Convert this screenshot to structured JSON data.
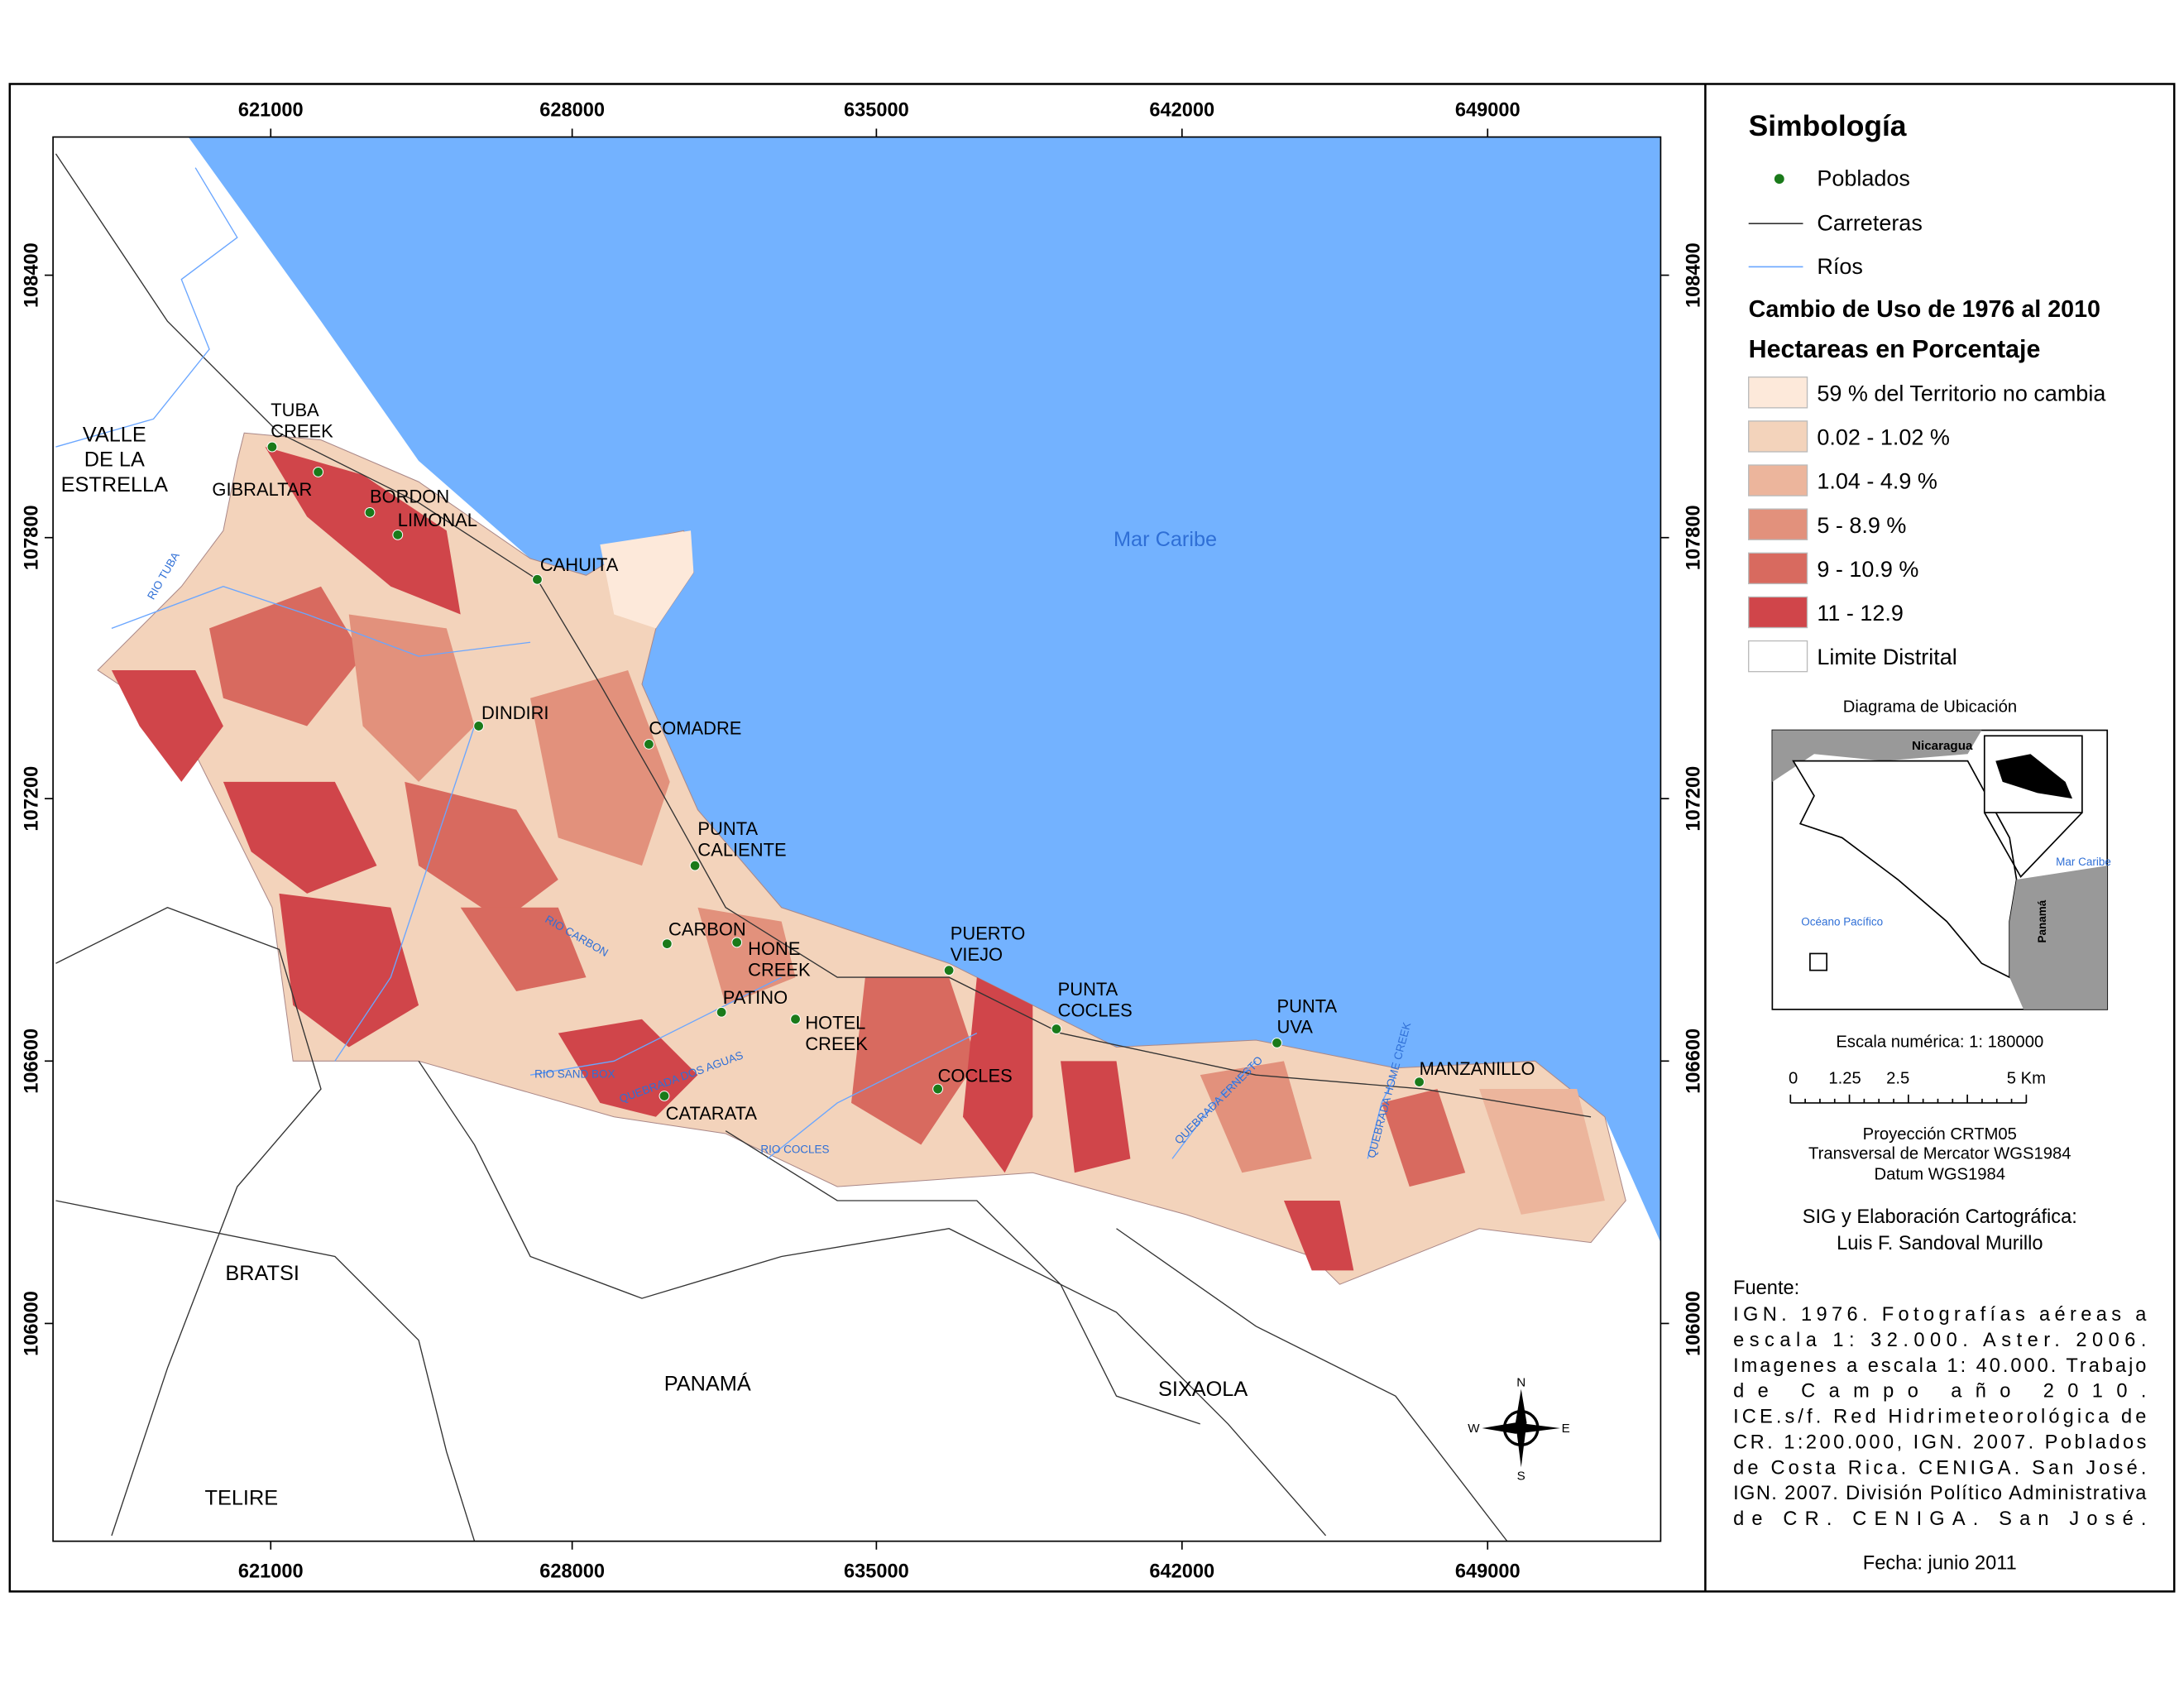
{
  "map": {
    "x_ticks": [
      621000,
      628000,
      635000,
      642000,
      649000
    ],
    "y_ticks": [
      108400,
      107800,
      107200,
      106600,
      106000
    ],
    "sea_label": "Mar Caribe",
    "places": [
      {
        "lines": [
          "TUBA",
          "CREEK"
        ]
      },
      {
        "lines": [
          "GIBRALTAR"
        ]
      },
      {
        "lines": [
          "BORDON"
        ]
      },
      {
        "lines": [
          "LIMONAL"
        ]
      },
      {
        "lines": [
          "CAHUITA"
        ]
      },
      {
        "lines": [
          "DINDIRI"
        ]
      },
      {
        "lines": [
          "COMADRE"
        ]
      },
      {
        "lines": [
          "PUNTA",
          "CALIENTE"
        ]
      },
      {
        "lines": [
          "CARBON"
        ]
      },
      {
        "lines": [
          "HONE",
          "CREEK"
        ]
      },
      {
        "lines": [
          "PATINO"
        ]
      },
      {
        "lines": [
          "HOTEL",
          "CREEK"
        ]
      },
      {
        "lines": [
          "CATARATA"
        ]
      },
      {
        "lines": [
          "PUERTO",
          "VIEJO"
        ]
      },
      {
        "lines": [
          "COCLES"
        ]
      },
      {
        "lines": [
          "PUNTA",
          "COCLES"
        ]
      },
      {
        "lines": [
          "PUNTA",
          "UVA"
        ]
      },
      {
        "lines": [
          "MANZANILLO"
        ]
      }
    ],
    "regions": [
      {
        "lines": [
          "VALLE",
          "DE LA",
          "ESTRELLA"
        ]
      },
      {
        "lines": [
          "BRATSI"
        ]
      },
      {
        "lines": [
          "PANAMÁ"
        ]
      },
      {
        "lines": [
          "SIXAOLA"
        ]
      },
      {
        "lines": [
          "TELIRE"
        ]
      }
    ],
    "rivers": [
      "RIO TUBA",
      "RIO CARBON",
      "RIO SAND BOX",
      "QUEBRADA DOS AGUAS",
      "RIO COCLES",
      "QUEBRADA ERNESTO",
      "QUEBRADA HOME CREEK"
    ],
    "compass": [
      "N",
      "S",
      "E",
      "W"
    ]
  },
  "legend": {
    "title": "Simbología",
    "symbols": [
      "Poblados",
      "Carreteras",
      "Ríos"
    ],
    "heading1": "Cambio de Uso de 1976 al 2010",
    "heading2": "Hectareas en Porcentaje",
    "classes": [
      {
        "label": "59 % del Territorio no cambia",
        "color": "#fde9da"
      },
      {
        "label": "0.02 - 1.02 %",
        "color": "#f3d3bb"
      },
      {
        "label": "1.04 - 4.9 %",
        "color": "#ecb59c"
      },
      {
        "label": "5 - 8.9 %",
        "color": "#e2917c"
      },
      {
        "label": "9 - 10.9 %",
        "color": "#d86a5f"
      },
      {
        "label": "11 - 12.9",
        "color": "#d0454a"
      },
      {
        "label": "Limite Distrital",
        "color": "#ffffff"
      }
    ]
  },
  "location_diagram": {
    "title": "Diagrama de Ubicación",
    "labels": [
      "Nicaragua",
      "Mar Caribe",
      "Océano Pacífico",
      "Panamá"
    ]
  },
  "scale": {
    "text": "Escala numérica: 1: 180000",
    "ticks": [
      "0",
      "1.25",
      "2.5",
      "5 Km"
    ]
  },
  "projection": [
    "Proyección CRTM05",
    "Transversal de Mercator WGS1984",
    "Datum WGS1984"
  ],
  "credits": [
    "SIG y Elaboración Cartográfica:",
    "Luis F. Sandoval Murillo"
  ],
  "source": {
    "title": "Fuente:",
    "lines": [
      "IGN. 1976. Fotografías aéreas a",
      "escala 1: 32.000. Aster. 2006.",
      "Imagenes a escala 1: 40.000. Trabajo",
      "de Campo año 2010.",
      "ICE.s/f. Red Hidrimeteorológica de",
      "CR. 1:200.000, IGN. 2007. Poblados",
      "de Costa Rica. CENIGA. San José.",
      "IGN. 2007. División Político Administrativa",
      "de CR. CENIGA. San José."
    ]
  },
  "date": "Fecha: junio 2011"
}
